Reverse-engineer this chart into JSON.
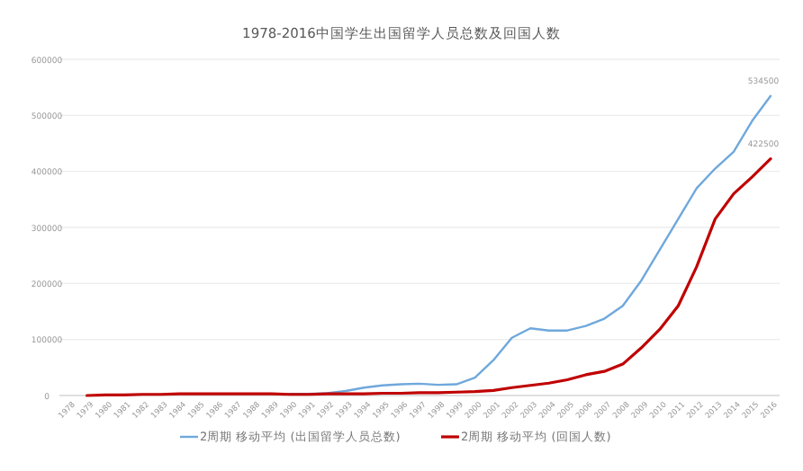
{
  "chart_data": {
    "type": "line",
    "title": "1978-2016中国学生出国留学人员总数及回国人数",
    "categories": [
      "1978",
      "1979",
      "1980",
      "1981",
      "1982",
      "1983",
      "1984",
      "1985",
      "1986",
      "1987",
      "1988",
      "1989",
      "1990",
      "1991",
      "1992",
      "1993",
      "1994",
      "1995",
      "1996",
      "1997",
      "1998",
      "1999",
      "2000",
      "2001",
      "2002",
      "2003",
      "2004",
      "2005",
      "2006",
      "2007",
      "2008",
      "2009",
      "2010",
      "2011",
      "2012",
      "2013",
      "2014",
      "2015",
      "2016"
    ],
    "series": [
      {
        "name": "2周期 移动平均 (出国留学人员总数)",
        "color": "#6fa8dc",
        "values": [
          null,
          null,
          null,
          null,
          null,
          null,
          null,
          null,
          null,
          null,
          null,
          null,
          3000,
          3000,
          4000,
          8000,
          14000,
          18000,
          20000,
          21000,
          19000,
          20000,
          32000,
          63000,
          103000,
          120000,
          116000,
          116000,
          124000,
          137000,
          160000,
          205000,
          260000,
          315000,
          370000,
          405000,
          435000,
          490000,
          534500
        ]
      },
      {
        "name": "2周期 移动平均 (回国人数)",
        "color": "#c00000",
        "values": [
          null,
          0,
          1000,
          1000,
          2000,
          2000,
          3000,
          3000,
          3000,
          3000,
          3000,
          3000,
          2000,
          2000,
          3000,
          3000,
          3000,
          4000,
          4000,
          5000,
          5000,
          6000,
          7000,
          9000,
          14000,
          18000,
          22000,
          28000,
          37000,
          43000,
          56000,
          85000,
          118000,
          160000,
          230000,
          315000,
          360000,
          390000,
          422500
        ]
      }
    ],
    "ylim": [
      0,
      600000
    ],
    "yticks": [
      0,
      100000,
      200000,
      300000,
      400000,
      500000,
      600000
    ],
    "grid": "y",
    "legend": "bottom",
    "marker": "none",
    "line_style": "solid",
    "annotations": [
      {
        "text": "534500",
        "x": "2016",
        "y": 534500
      },
      {
        "text": "422500",
        "x": "2016",
        "y": 422500
      }
    ]
  }
}
